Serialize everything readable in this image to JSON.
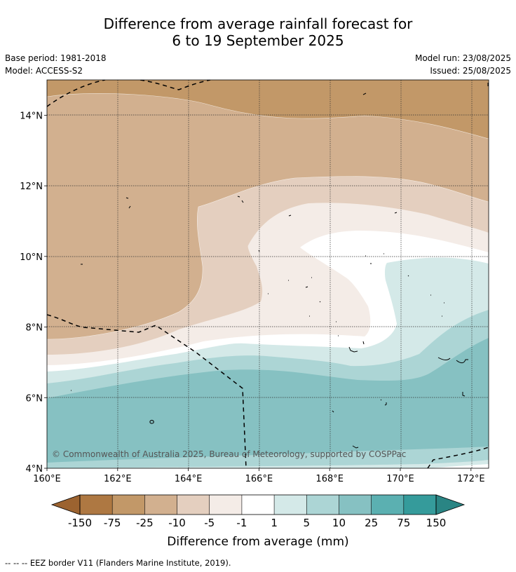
{
  "header": {
    "title_line1": "Difference from average rainfall forecast for",
    "title_line2": "6 to 19 September 2025",
    "base_period": "Base period: 1981-2018",
    "model": "Model: ACCESS-S2",
    "model_run": "Model run: 23/08/2025",
    "issued": "Issued: 25/08/2025"
  },
  "map": {
    "copyright": "© Commonwealth of Australia 2025, Bureau of Meteorology, supported by COSPPac",
    "lon_ticks": [
      "160°E",
      "162°E",
      "164°E",
      "166°E",
      "168°E",
      "170°E",
      "172°E"
    ],
    "lat_ticks": [
      "14°N",
      "12°N",
      "10°N",
      "8°N",
      "6°N",
      "4°N"
    ],
    "lon_range": [
      160,
      172.5
    ],
    "lat_range": [
      4,
      15
    ]
  },
  "colorbar": {
    "title": "Difference from average (mm)",
    "tick_labels": [
      "-150",
      "-75",
      "-25",
      "-10",
      "-5",
      "-1",
      "1",
      "5",
      "10",
      "25",
      "75",
      "150"
    ],
    "colors": [
      "#9c6330",
      "#ae7842",
      "#c29868",
      "#d2b08f",
      "#e4cfbf",
      "#f4ece7",
      "#ffffff",
      "#d4e9e8",
      "#acd5d5",
      "#86c1c2",
      "#5bb0b1",
      "#359b9b",
      "#2a8584"
    ]
  },
  "footnote": "-- -- -- EEZ border V11 (Flanders Marine Institute, 2019)."
}
